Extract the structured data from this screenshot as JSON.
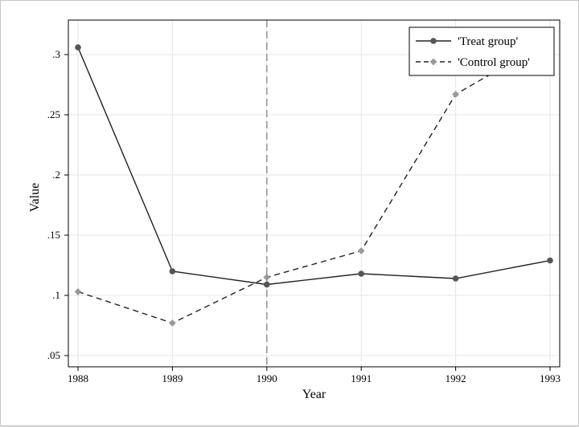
{
  "chart_data": {
    "type": "line",
    "xlabel": "Year",
    "ylabel": "Value",
    "x": [
      1988,
      1989,
      1990,
      1991,
      1992,
      1993
    ],
    "x_tick_labels": [
      "1988",
      "1989",
      "1990",
      "1991",
      "1992",
      "1993"
    ],
    "y_ticks": [
      0.05,
      0.1,
      0.15,
      0.2,
      0.25,
      0.3
    ],
    "y_tick_labels": [
      ".05",
      ".1",
      ".15",
      ".2",
      ".25",
      ".3"
    ],
    "xlim": [
      1988,
      1993
    ],
    "ylim": [
      0.05,
      0.3
    ],
    "grid": true,
    "legend_position": "top-right",
    "reference_line": {
      "x": 1990,
      "style": "dashed",
      "color": "#999999"
    },
    "series": [
      {
        "name": "'Treat group'",
        "values": [
          0.306,
          0.12,
          0.109,
          0.118,
          0.114,
          0.129
        ],
        "color": "#222222",
        "marker_color": "#555555",
        "marker": "circle",
        "line_style": "solid"
      },
      {
        "name": "'Control group'",
        "values": [
          0.103,
          0.077,
          0.115,
          0.137,
          0.267,
          0.312
        ],
        "color": "#222222",
        "marker_color": "#999999",
        "marker": "diamond",
        "line_style": "dashed"
      }
    ]
  }
}
